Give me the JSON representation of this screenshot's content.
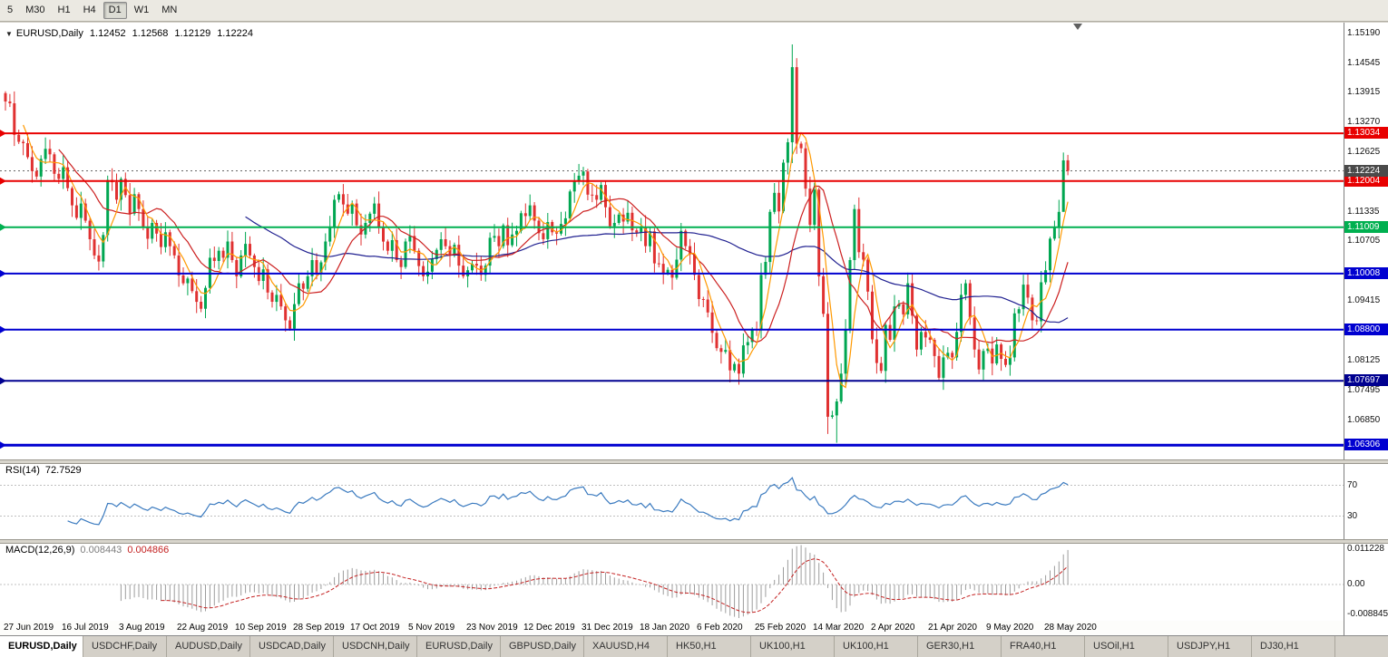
{
  "toolbar": {
    "timeframes": [
      {
        "label": "5",
        "active": false
      },
      {
        "label": "M30",
        "active": false
      },
      {
        "label": "H1",
        "active": false
      },
      {
        "label": "H4",
        "active": false
      },
      {
        "label": "D1",
        "active": true
      },
      {
        "label": "W1",
        "active": false
      },
      {
        "label": "MN",
        "active": false
      }
    ]
  },
  "main_chart": {
    "symbol_label": "EURUSD,Daily",
    "ohlc": {
      "open": "1.12452",
      "high": "1.12568",
      "low": "1.12129",
      "close": "1.12224"
    },
    "current_price": "1.12224",
    "current_price_badge_color": "#4a4a4a",
    "price_scale_labels": [
      "1.15190",
      "1.14545",
      "1.13915",
      "1.13270",
      "1.12625",
      "1.11335",
      "1.10705",
      "1.09415",
      "1.08125",
      "1.07495",
      "1.06850"
    ],
    "hlines": [
      {
        "price": 1.13034,
        "label": "1.13034",
        "color": "#e80000",
        "width": 2
      },
      {
        "price": 1.12004,
        "label": "1.12004",
        "color": "#e80000",
        "width": 2
      },
      {
        "price": 1.11009,
        "label": "1.11009",
        "color": "#00b050",
        "width": 2
      },
      {
        "price": 1.10008,
        "label": "1.10008",
        "color": "#0000d0",
        "width": 2
      },
      {
        "price": 1.088,
        "label": "1.08800",
        "color": "#0000d0",
        "width": 2
      },
      {
        "price": 1.07697,
        "label": "1.07697",
        "color": "#000090",
        "width": 2
      },
      {
        "price": 1.06306,
        "label": "1.06306",
        "color": "#0000d0",
        "width": 3
      }
    ]
  },
  "chart_data": {
    "type": "candlestick",
    "symbol": "EURUSD",
    "timeframe": "Daily",
    "x_labels": [
      "27 Jun 2019",
      "16 Jul 2019",
      "3 Aug 2019",
      "22 Aug 2019",
      "10 Sep 2019",
      "28 Sep 2019",
      "17 Oct 2019",
      "5 Nov 2019",
      "23 Nov 2019",
      "12 Dec 2019",
      "31 Dec 2019",
      "18 Jan 2020",
      "6 Feb 2020",
      "25 Feb 2020",
      "14 Mar 2020",
      "2 Apr 2020",
      "21 Apr 2020",
      "9 May 2020",
      "28 May 2020"
    ],
    "price_axis": {
      "top": 1.1542,
      "bottom": 1.06
    },
    "first_open": 1.139,
    "closes": [
      1.1372,
      1.1368,
      1.13,
      1.1285,
      1.1282,
      1.1252,
      1.1222,
      1.121,
      1.1248,
      1.127,
      1.1258,
      1.1216,
      1.1205,
      1.123,
      1.1185,
      1.1148,
      1.1121,
      1.1152,
      1.1115,
      1.1075,
      1.104,
      1.1027,
      1.1084,
      1.1203,
      1.1198,
      1.116,
      1.1205,
      1.117,
      1.113,
      1.1172,
      1.114,
      1.11,
      1.1076,
      1.111,
      1.1087,
      1.1058,
      1.109,
      1.106,
      1.104,
      1.0997,
      1.098,
      1.099,
      1.0963,
      1.094,
      1.0925,
      1.097,
      1.1035,
      1.1028,
      1.105,
      1.1035,
      1.107,
      1.103,
      1.0995,
      1.104,
      1.1065,
      1.104,
      1.1015,
      1.0985,
      1.101,
      1.096,
      1.094,
      1.0955,
      1.093,
      1.09,
      1.0882,
      1.0935,
      1.098,
      1.0968,
      1.0995,
      1.103,
      1.1,
      1.1025,
      1.107,
      1.11,
      1.116,
      1.1172,
      1.115,
      1.113,
      1.1152,
      1.1105,
      1.1085,
      1.111,
      1.113,
      1.1152,
      1.11,
      1.107,
      1.105,
      1.1073,
      1.103,
      1.1015,
      1.107,
      1.1082,
      1.105,
      1.1017,
      1.0995,
      1.1005,
      1.1032,
      1.1052,
      1.1075,
      1.106,
      1.104,
      1.1063,
      1.1018,
      1.0995,
      1.1008,
      1.1022,
      1.1018,
      1.0998,
      1.1018,
      1.1078,
      1.1082,
      1.106,
      1.1105,
      1.1062,
      1.1085,
      1.1093,
      1.1131,
      1.1125,
      1.1148,
      1.1115,
      1.1088,
      1.1075,
      1.1112,
      1.109,
      1.1087,
      1.1108,
      1.112,
      1.1178,
      1.12,
      1.1212,
      1.1221,
      1.1171,
      1.117,
      1.116,
      1.1192,
      1.1144,
      1.1103,
      1.111,
      1.1128,
      1.1113,
      1.1132,
      1.1094,
      1.1089,
      1.1102,
      1.106,
      1.1092,
      1.1023,
      1.1022,
      1.1002,
      1.1009,
      1.0992,
      1.1031,
      1.1093,
      1.106,
      1.1042,
      1.0998,
      1.0946,
      1.0945,
      1.0917,
      1.0873,
      1.084,
      1.0832,
      1.0836,
      1.0792,
      1.0806,
      1.0785,
      1.0846,
      1.0853,
      1.0881,
      1.088,
      1.0998,
      1.1026,
      1.1134,
      1.1175,
      1.1135,
      1.124,
      1.1284,
      1.1446,
      1.1281,
      1.1271,
      1.1184,
      1.1106,
      1.1182,
      1.0995,
      1.0914,
      1.0692,
      1.0695,
      1.0725,
      1.0785,
      1.088,
      1.103,
      1.114,
      1.1047,
      1.1031,
      1.0962,
      1.0859,
      1.0808,
      1.0791,
      1.089,
      1.0858,
      1.093,
      1.0935,
      1.0913,
      1.098,
      1.091,
      1.0837,
      1.0875,
      1.0863,
      1.0858,
      1.0823,
      1.0776,
      1.082,
      1.083,
      1.082,
      1.0875,
      1.0955,
      1.098,
      1.0906,
      1.0837,
      1.0794,
      1.0834,
      1.0839,
      1.0807,
      1.0848,
      1.0817,
      1.0804,
      1.082,
      1.0915,
      1.0924,
      1.0977,
      1.0949,
      1.09,
      1.0898,
      1.0982,
      1.1008,
      1.1076,
      1.1102,
      1.1134,
      1.1245,
      1.1222
    ],
    "overrides": {
      "177": {
        "h": 1.1495,
        "l": 1.1239
      },
      "185": {
        "l": 1.0655
      },
      "187": {
        "l": 1.0636
      },
      "238": {
        "h": 1.1262,
        "l": 1.1165
      },
      "239": {
        "o": 1.12452,
        "h": 1.12568,
        "l": 1.12129,
        "c": 1.12224
      }
    },
    "moving_averages": [
      {
        "period": 5,
        "color": "#ff9900"
      },
      {
        "period": 13,
        "color": "#cc2020"
      },
      {
        "period": 55,
        "color": "#202090"
      }
    ],
    "colors": {
      "up": "#00a651",
      "down": "#e03131",
      "bid_line": "#666666"
    }
  },
  "rsi": {
    "label": "RSI(14)",
    "value": "72.7529",
    "period": 14,
    "color": "#3a7abf",
    "levels": [
      "70",
      "30"
    ],
    "level_values": [
      70,
      30
    ]
  },
  "macd": {
    "label": "MACD(12,26,9)",
    "macd_value": "0.008443",
    "signal_value": "0.004866",
    "fast": 12,
    "slow": 26,
    "signal": 9,
    "scale_top": "0.011228",
    "scale_zero": "0.00",
    "scale_bottom": "-0.008845",
    "histogram_color": "#9c9c9c",
    "signal_color": "#c42222"
  },
  "tabs": [
    {
      "label": "EURUSD,Daily",
      "active": true
    },
    {
      "label": "USDCHF,Daily",
      "active": false
    },
    {
      "label": "AUDUSD,Daily",
      "active": false
    },
    {
      "label": "USDCAD,Daily",
      "active": false
    },
    {
      "label": "USDCNH,Daily",
      "active": false
    },
    {
      "label": "EURUSD,Daily",
      "active": false
    },
    {
      "label": "GBPUSD,Daily",
      "active": false
    },
    {
      "label": "XAUUSD,H4",
      "active": false
    },
    {
      "label": "HK50,H1",
      "active": false
    },
    {
      "label": "UK100,H1",
      "active": false
    },
    {
      "label": "UK100,H1",
      "active": false
    },
    {
      "label": "GER30,H1",
      "active": false
    },
    {
      "label": "FRA40,H1",
      "active": false
    },
    {
      "label": "USOil,H1",
      "active": false
    },
    {
      "label": "USDJPY,H1",
      "active": false
    },
    {
      "label": "DJ30,H1",
      "active": false
    }
  ]
}
